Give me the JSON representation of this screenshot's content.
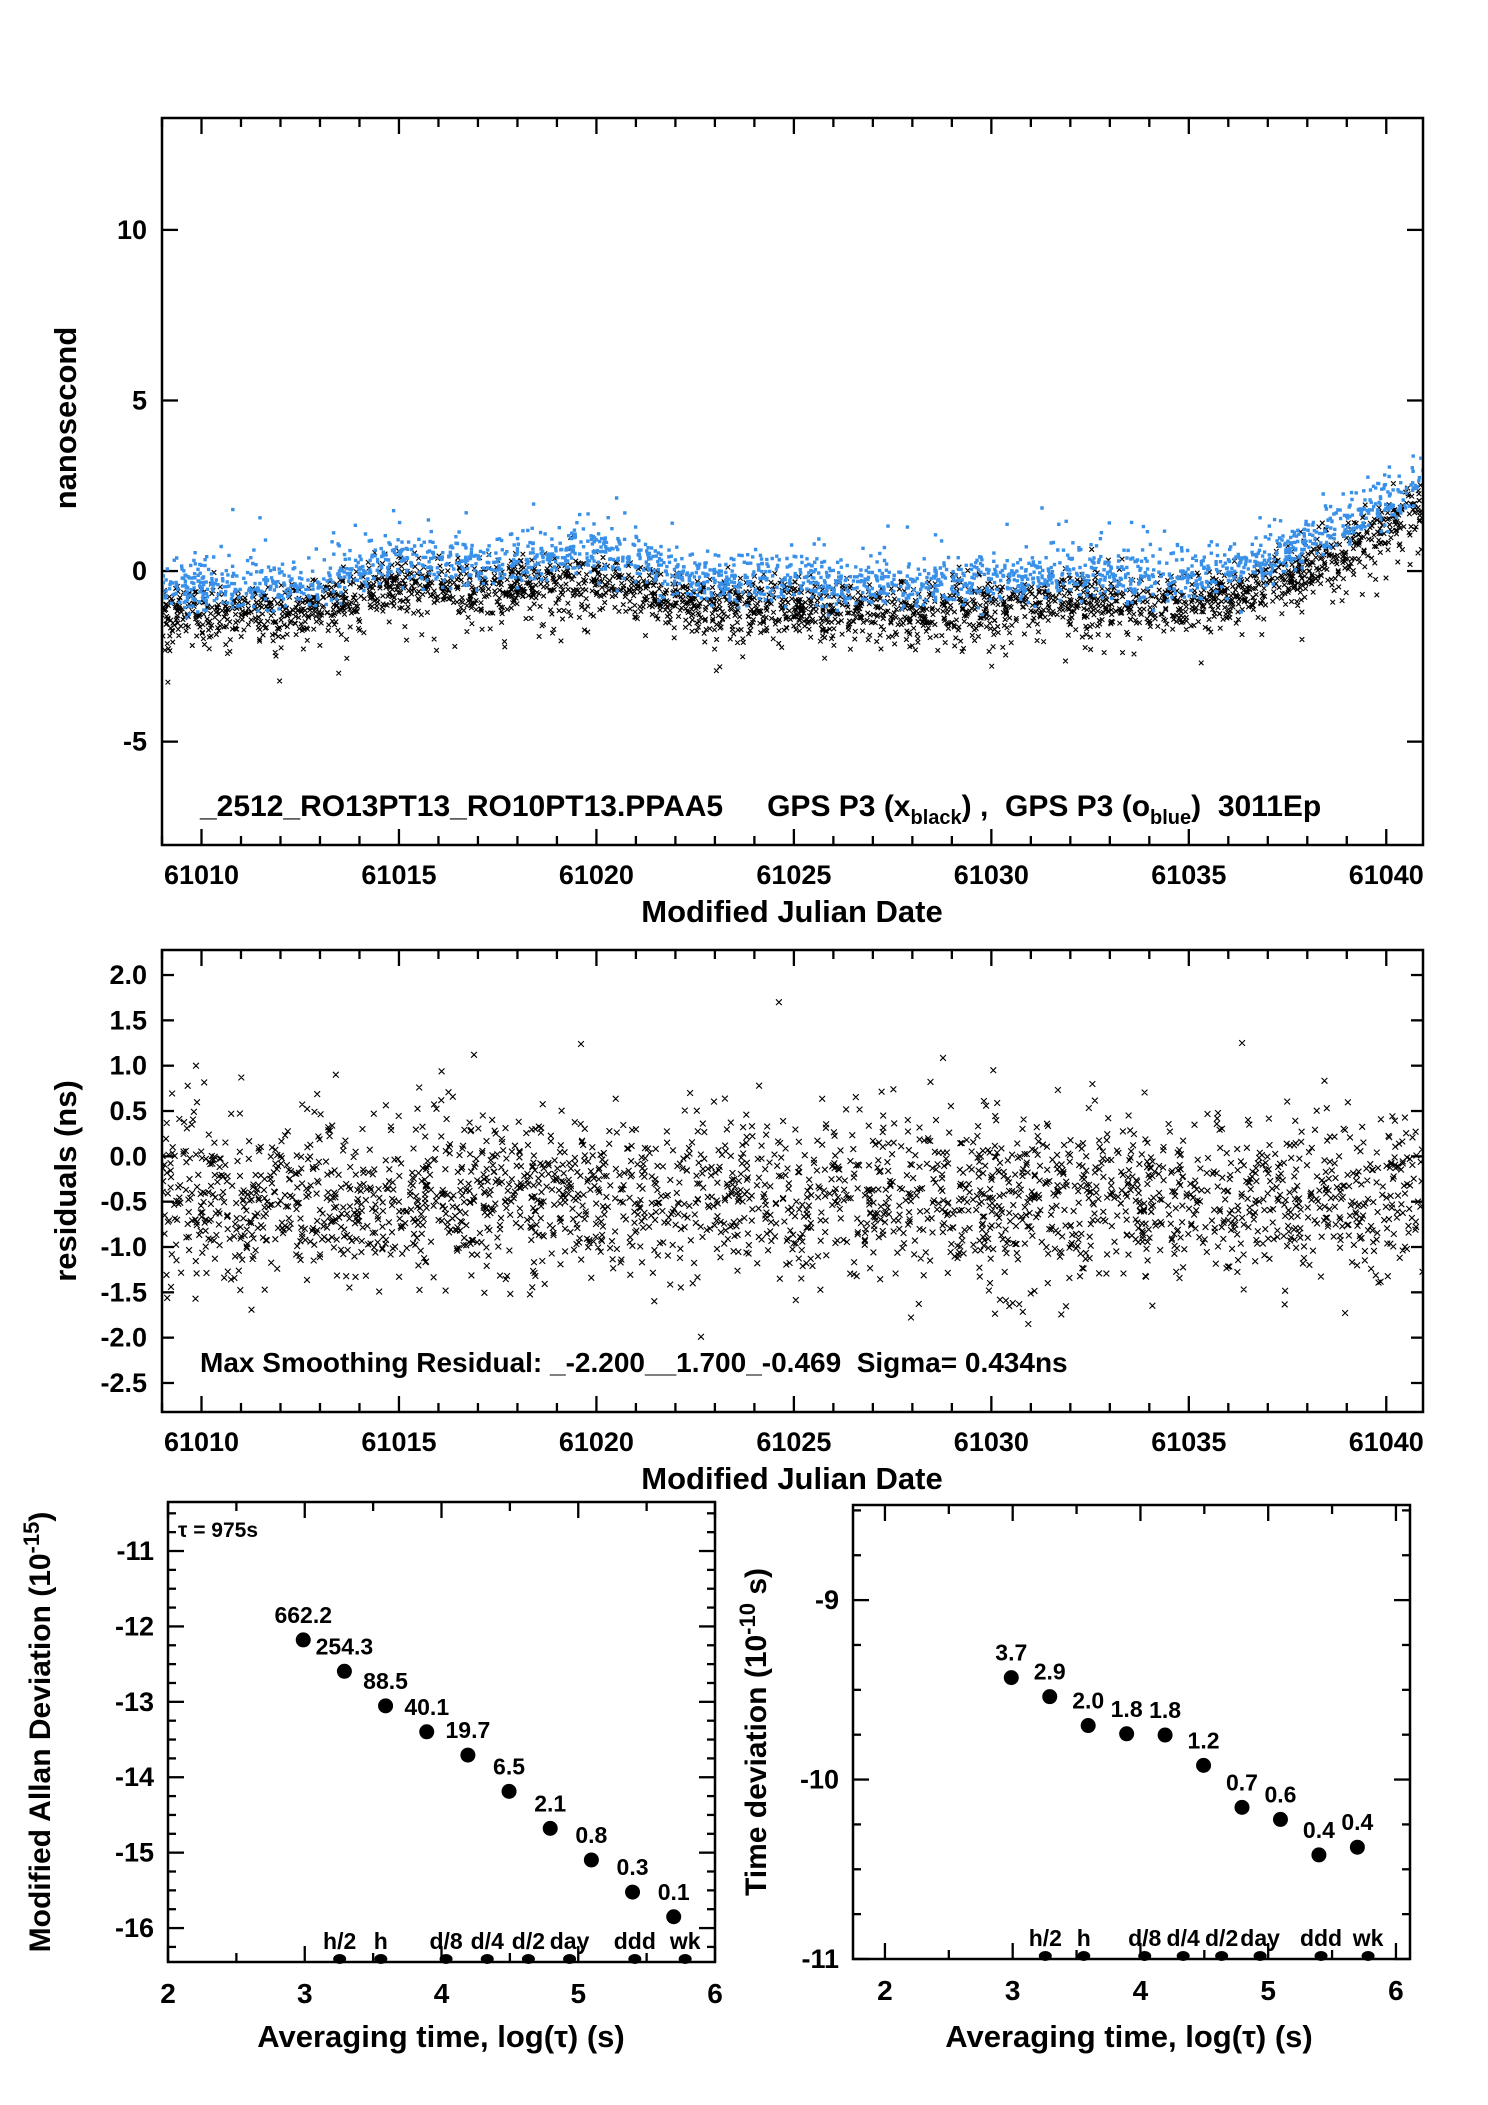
{
  "colors": {
    "black": "#000000",
    "blue": "#3990e8",
    "red": "#ff0000",
    "background": "#ffffff"
  },
  "chart_data": [
    {
      "id": "phase",
      "type": "scatter",
      "xlabel": "Modified Julian Date",
      "ylabel": "nanosecond",
      "x_range": [
        61009.0,
        61040.93
      ],
      "y_range": [
        -8.03,
        13.28
      ],
      "x_major_ticks": [
        61010,
        61015,
        61020,
        61025,
        61030,
        61035,
        61040
      ],
      "x_minor_step": 1,
      "y_ticks": [
        -5,
        0,
        5,
        10
      ],
      "title_parts": {
        "part1": "_2512_RO13PT13_RO10PT13.PPAA5",
        "part2": "GPS P3 (x",
        "sub1": "black",
        "part3": ") ,  GPS P3 (o",
        "sub2": "blue",
        "part4": ")  3011Ep"
      },
      "series": [
        {
          "name": "GPS P3 x (black)",
          "marker": "x",
          "color": "#000000",
          "count": 2800,
          "sigma": 0.42,
          "offset": 0.0,
          "seed": 11,
          "tail_frac": 0.08,
          "tail_dir": -1,
          "trend": [
            [
              61009,
              -1.35
            ],
            [
              61011,
              -1.15
            ],
            [
              61012.5,
              -1.25
            ],
            [
              61013.5,
              -0.9
            ],
            [
              61014.5,
              -0.55
            ],
            [
              61015,
              -0.35
            ],
            [
              61016.5,
              -0.5
            ],
            [
              61018,
              -0.4
            ],
            [
              61019.5,
              -0.25
            ],
            [
              61021,
              -0.4
            ],
            [
              61022.5,
              -1.0
            ],
            [
              61024,
              -0.95
            ],
            [
              61026,
              -1.1
            ],
            [
              61028,
              -1.18
            ],
            [
              61030,
              -1.0
            ],
            [
              61031.5,
              -0.8
            ],
            [
              61033,
              -0.9
            ],
            [
              61034.5,
              -1.0
            ],
            [
              61036,
              -0.7
            ],
            [
              61037,
              -0.4
            ],
            [
              61038,
              0.1
            ],
            [
              61039,
              0.65
            ],
            [
              61040,
              1.25
            ],
            [
              61040.93,
              1.9
            ]
          ]
        },
        {
          "name": "GPS P3 o (blue)",
          "marker": "square",
          "color": "#3990e8",
          "count": 2200,
          "sigma": 0.36,
          "offset": 0.75,
          "seed": 77,
          "tail_frac": 0.05,
          "tail_dir": 1,
          "trend": "same-as-black"
        }
      ]
    },
    {
      "id": "residuals",
      "type": "scatter",
      "xlabel": "Modified Julian Date",
      "ylabel": "residuals (ns)",
      "x_range": [
        61009.0,
        61040.93
      ],
      "y_range": [
        -2.82,
        2.276
      ],
      "x_major_ticks": [
        61010,
        61015,
        61020,
        61025,
        61030,
        61035,
        61040
      ],
      "x_minor_step": 1,
      "y_ticks": [
        2.0,
        1.5,
        1.0,
        0.5,
        0.0,
        -0.5,
        -1.0,
        -1.5,
        -2.0,
        -2.5
      ],
      "annotation": "Max Smoothing Residual: _-2.200__1.700_-0.469  Sigma= 0.434ns",
      "stats": {
        "min": -2.2,
        "max": 1.7,
        "mean": -0.469,
        "sigma_ns": 0.434
      },
      "series": [
        {
          "name": "smoothing residuals",
          "marker": "x",
          "color": "#000000",
          "count": 2400,
          "mean": -0.45,
          "sigma": 0.45,
          "clip": [
            -2.2,
            1.7
          ],
          "seed": 5
        }
      ],
      "outliers": [
        [
          61024.62,
          1.7
        ],
        [
          61036.35,
          1.25
        ],
        [
          61016.9,
          1.12
        ],
        [
          61030.05,
          0.95
        ],
        [
          61013.4,
          0.9
        ]
      ]
    },
    {
      "id": "mdev",
      "type": "scatter",
      "ylabel_parts": {
        "main": "Modified Allan Deviation (10",
        "sup": "-15",
        "end": ")"
      },
      "xlabel_parts": {
        "pre": "Averaging time, log(",
        "tau": "τ",
        "end": ") (s)"
      },
      "tau_note": "τ = 975s",
      "x_range": [
        2,
        6
      ],
      "y_range": [
        -16.45,
        -10.35
      ],
      "x_major_ticks": [
        2,
        3,
        4,
        5,
        6
      ],
      "x_minor_step": 0.5,
      "y_major_ticks": [
        -11,
        -12,
        -13,
        -14,
        -15,
        -16
      ],
      "y_minor_step": 0.25,
      "points": {
        "log_tau": [
          2.989,
          3.29,
          3.591,
          3.892,
          4.193,
          4.494,
          4.795,
          5.096,
          5.397,
          5.698
        ],
        "log_dev": [
          -12.179,
          -12.595,
          -13.053,
          -13.397,
          -13.706,
          -14.187,
          -14.678,
          -15.097,
          -15.523,
          -15.85
        ],
        "labels": [
          "662.2",
          "254.3",
          "88.5",
          "40.1",
          "19.7",
          "6.5",
          "2.1",
          "0.8",
          "0.3",
          "0.1"
        ]
      },
      "tau_markers": {
        "labels": [
          "h/2",
          "h",
          "d/8",
          "d/4",
          "d/2",
          "day",
          "ddd",
          "wk"
        ],
        "log_tau": [
          3.2553,
          3.5563,
          4.0334,
          4.3345,
          4.6355,
          4.9366,
          5.4137,
          5.7818
        ]
      }
    },
    {
      "id": "tdev",
      "type": "scatter",
      "ylabel_parts": {
        "main": "Time deviation (10",
        "sup": "-10",
        "end": " s)"
      },
      "xlabel_parts": {
        "pre": "Averaging time, log(",
        "tau": "τ",
        "end": ") (s)"
      },
      "x_range": [
        1.75,
        6.11
      ],
      "y_range": [
        -11,
        -8.47
      ],
      "x_major_ticks": [
        2,
        3,
        4,
        5,
        6
      ],
      "x_minor_step": 0.5,
      "y_major_ticks": [
        -9,
        -10,
        -11
      ],
      "y_minor_step": 0.25,
      "points": {
        "log_tau": [
          2.989,
          3.29,
          3.591,
          3.892,
          4.193,
          4.494,
          4.795,
          5.096,
          5.397,
          5.698
        ],
        "log_dev": [
          -9.432,
          -9.538,
          -9.699,
          -9.745,
          -9.752,
          -9.921,
          -10.155,
          -10.222,
          -10.42,
          -10.377
        ],
        "labels": [
          "3.7",
          "2.9",
          "2.0",
          "1.8",
          "1.8",
          "1.2",
          "0.7",
          "0.6",
          "0.4",
          "0.4"
        ]
      },
      "tau_markers": {
        "labels": [
          "h/2",
          "h",
          "d/8",
          "d/4",
          "d/2",
          "day",
          "ddd",
          "wk"
        ],
        "log_tau": [
          3.2553,
          3.5563,
          4.0334,
          4.3345,
          4.6355,
          4.9366,
          5.4137,
          5.7818
        ]
      }
    }
  ]
}
